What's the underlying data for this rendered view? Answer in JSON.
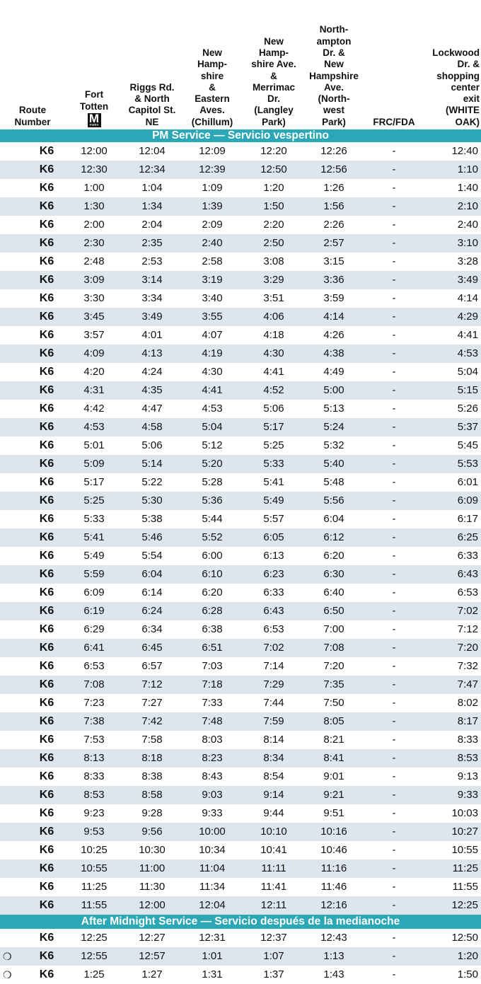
{
  "header": {
    "columns": [
      {
        "lines": [
          "Route",
          "Number"
        ]
      },
      {
        "lines": [
          "Fort",
          "Totten"
        ],
        "icon": {
          "letter": "M",
          "label": "metro"
        }
      },
      {
        "lines": [
          "Riggs Rd.",
          "& North",
          "Capitol St.",
          "NE"
        ]
      },
      {
        "lines": [
          "New",
          "Hamp-",
          "shire",
          "&",
          "Eastern",
          "Aves.",
          "(Chillum)"
        ]
      },
      {
        "lines": [
          "New",
          "Hamp-",
          "shire Ave.",
          "&",
          "Merrimac",
          "Dr.",
          "(Langley",
          "Park)"
        ]
      },
      {
        "lines": [
          "North-",
          "ampton",
          "Dr. &",
          "New",
          "Hampshire",
          "Ave.",
          "(North-",
          "west",
          "Park)"
        ]
      },
      {
        "lines": [
          "FRC/FDA"
        ]
      },
      {
        "lines": [
          "Lockwood",
          "Dr. &",
          "shopping",
          "center",
          "exit",
          "(WHITE",
          "OAK)"
        ]
      }
    ]
  },
  "sections": [
    {
      "title": "PM Service — Servicio vespertino",
      "rows": [
        [
          "K6",
          "12:00",
          "12:04",
          "12:09",
          "12:20",
          "12:26",
          "-",
          "12:40"
        ],
        [
          "K6",
          "12:30",
          "12:34",
          "12:39",
          "12:50",
          "12:56",
          "-",
          "1:10"
        ],
        [
          "K6",
          "1:00",
          "1:04",
          "1:09",
          "1:20",
          "1:26",
          "-",
          "1:40"
        ],
        [
          "K6",
          "1:30",
          "1:34",
          "1:39",
          "1:50",
          "1:56",
          "-",
          "2:10"
        ],
        [
          "K6",
          "2:00",
          "2:04",
          "2:09",
          "2:20",
          "2:26",
          "-",
          "2:40"
        ],
        [
          "K6",
          "2:30",
          "2:35",
          "2:40",
          "2:50",
          "2:57",
          "-",
          "3:10"
        ],
        [
          "K6",
          "2:48",
          "2:53",
          "2:58",
          "3:08",
          "3:15",
          "-",
          "3:28"
        ],
        [
          "K6",
          "3:09",
          "3:14",
          "3:19",
          "3:29",
          "3:36",
          "-",
          "3:49"
        ],
        [
          "K6",
          "3:30",
          "3:34",
          "3:40",
          "3:51",
          "3:59",
          "-",
          "4:14"
        ],
        [
          "K6",
          "3:45",
          "3:49",
          "3:55",
          "4:06",
          "4:14",
          "-",
          "4:29"
        ],
        [
          "K6",
          "3:57",
          "4:01",
          "4:07",
          "4:18",
          "4:26",
          "-",
          "4:41"
        ],
        [
          "K6",
          "4:09",
          "4:13",
          "4:19",
          "4:30",
          "4:38",
          "-",
          "4:53"
        ],
        [
          "K6",
          "4:20",
          "4:24",
          "4:30",
          "4:41",
          "4:49",
          "-",
          "5:04"
        ],
        [
          "K6",
          "4:31",
          "4:35",
          "4:41",
          "4:52",
          "5:00",
          "-",
          "5:15"
        ],
        [
          "K6",
          "4:42",
          "4:47",
          "4:53",
          "5:06",
          "5:13",
          "-",
          "5:26"
        ],
        [
          "K6",
          "4:53",
          "4:58",
          "5:04",
          "5:17",
          "5:24",
          "-",
          "5:37"
        ],
        [
          "K6",
          "5:01",
          "5:06",
          "5:12",
          "5:25",
          "5:32",
          "-",
          "5:45"
        ],
        [
          "K6",
          "5:09",
          "5:14",
          "5:20",
          "5:33",
          "5:40",
          "-",
          "5:53"
        ],
        [
          "K6",
          "5:17",
          "5:22",
          "5:28",
          "5:41",
          "5:48",
          "-",
          "6:01"
        ],
        [
          "K6",
          "5:25",
          "5:30",
          "5:36",
          "5:49",
          "5:56",
          "-",
          "6:09"
        ],
        [
          "K6",
          "5:33",
          "5:38",
          "5:44",
          "5:57",
          "6:04",
          "-",
          "6:17"
        ],
        [
          "K6",
          "5:41",
          "5:46",
          "5:52",
          "6:05",
          "6:12",
          "-",
          "6:25"
        ],
        [
          "K6",
          "5:49",
          "5:54",
          "6:00",
          "6:13",
          "6:20",
          "-",
          "6:33"
        ],
        [
          "K6",
          "5:59",
          "6:04",
          "6:10",
          "6:23",
          "6:30",
          "-",
          "6:43"
        ],
        [
          "K6",
          "6:09",
          "6:14",
          "6:20",
          "6:33",
          "6:40",
          "-",
          "6:53"
        ],
        [
          "K6",
          "6:19",
          "6:24",
          "6:28",
          "6:43",
          "6:50",
          "-",
          "7:02"
        ],
        [
          "K6",
          "6:29",
          "6:34",
          "6:38",
          "6:53",
          "7:00",
          "-",
          "7:12"
        ],
        [
          "K6",
          "6:41",
          "6:45",
          "6:51",
          "7:02",
          "7:08",
          "-",
          "7:20"
        ],
        [
          "K6",
          "6:53",
          "6:57",
          "7:03",
          "7:14",
          "7:20",
          "-",
          "7:32"
        ],
        [
          "K6",
          "7:08",
          "7:12",
          "7:18",
          "7:29",
          "7:35",
          "-",
          "7:47"
        ],
        [
          "K6",
          "7:23",
          "7:27",
          "7:33",
          "7:44",
          "7:50",
          "-",
          "8:02"
        ],
        [
          "K6",
          "7:38",
          "7:42",
          "7:48",
          "7:59",
          "8:05",
          "-",
          "8:17"
        ],
        [
          "K6",
          "7:53",
          "7:58",
          "8:03",
          "8:14",
          "8:21",
          "-",
          "8:33"
        ],
        [
          "K6",
          "8:13",
          "8:18",
          "8:23",
          "8:34",
          "8:41",
          "-",
          "8:53"
        ],
        [
          "K6",
          "8:33",
          "8:38",
          "8:43",
          "8:54",
          "9:01",
          "-",
          "9:13"
        ],
        [
          "K6",
          "8:53",
          "8:58",
          "9:03",
          "9:14",
          "9:21",
          "-",
          "9:33"
        ],
        [
          "K6",
          "9:23",
          "9:28",
          "9:33",
          "9:44",
          "9:51",
          "-",
          "10:03"
        ],
        [
          "K6",
          "9:53",
          "9:56",
          "10:00",
          "10:10",
          "10:16",
          "-",
          "10:27"
        ],
        [
          "K6",
          "10:25",
          "10:30",
          "10:34",
          "10:41",
          "10:46",
          "-",
          "10:55"
        ],
        [
          "K6",
          "10:55",
          "11:00",
          "11:04",
          "11:11",
          "11:16",
          "-",
          "11:25"
        ],
        [
          "K6",
          "11:25",
          "11:30",
          "11:34",
          "11:41",
          "11:46",
          "-",
          "11:55"
        ],
        [
          "K6",
          "11:55",
          "12:00",
          "12:04",
          "12:11",
          "12:16",
          "-",
          "12:25"
        ]
      ]
    },
    {
      "title": "After Midnight Service — Servicio después de la medianoche",
      "rows": [
        [
          "K6",
          "12:25",
          "12:27",
          "12:31",
          "12:37",
          "12:43",
          "-",
          "12:50"
        ],
        {
          "symbol": "❍",
          "cells": [
            "K6",
            "12:55",
            "12:57",
            "1:01",
            "1:07",
            "1:13",
            "-",
            "1:20"
          ]
        },
        {
          "symbol": "❍",
          "cells": [
            "K6",
            "1:25",
            "1:27",
            "1:31",
            "1:37",
            "1:43",
            "-",
            "1:50"
          ]
        }
      ]
    }
  ]
}
